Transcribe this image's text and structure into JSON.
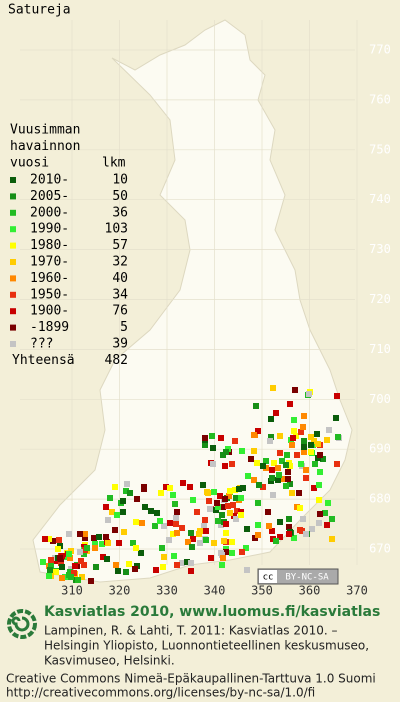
{
  "title": "Satureja",
  "map": {
    "y_labels": [
      770,
      760,
      750,
      740,
      730,
      720,
      710,
      700,
      690,
      680,
      670
    ],
    "x_labels": [
      310,
      320,
      330,
      340,
      350,
      360,
      370
    ]
  },
  "legend": {
    "heading": [
      "Vuusimman",
      "havainnon",
      "vuosi"
    ],
    "count_heading": "lkm",
    "rows": [
      {
        "label": "2010-",
        "count": 10,
        "color": "#0b5d0b"
      },
      {
        "label": "2005-",
        "count": 50,
        "color": "#178f17"
      },
      {
        "label": "2000-",
        "count": 36,
        "color": "#22bb22"
      },
      {
        "label": "1990-",
        "count": 103,
        "color": "#33ee33"
      },
      {
        "label": "1980-",
        "count": 57,
        "color": "#ffff00"
      },
      {
        "label": "1970-",
        "count": 32,
        "color": "#ffcc00"
      },
      {
        "label": "1960-",
        "count": 40,
        "color": "#ff8800"
      },
      {
        "label": "1950-",
        "count": 34,
        "color": "#e83010"
      },
      {
        "label": "1900-",
        "count": 76,
        "color": "#c80000"
      },
      {
        "label": "-1899",
        "count": 5,
        "color": "#7a0000"
      },
      {
        "label": "???",
        "count": 39,
        "color": "#c4c4c4"
      }
    ],
    "total_label": "Yhteensä",
    "total": 482
  },
  "badge": {
    "cc": "cc",
    "text": "BY-NC-SA"
  },
  "footer": {
    "headline": "Kasviatlas 2010, www.luomus.fi/kasviatlas",
    "citation": [
      "Lampinen, R. & Lahti, T. 2011: Kasviatlas 2010. –",
      "Helsingin Yliopisto, Luonnontieteellinen keskusmuseo,",
      "Kasvimuseo, Helsinki."
    ],
    "license": [
      "Creative Commons Nimeä-Epäkaupallinen-Tarttuva 1.0 Suomi",
      "http://creativecommons.org/licenses/by-nc-sa/1.0/fi"
    ]
  }
}
